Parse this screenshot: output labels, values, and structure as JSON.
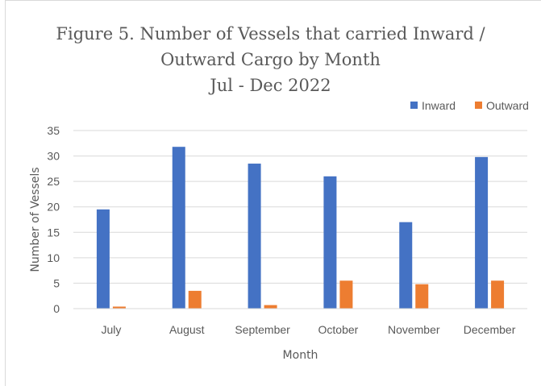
{
  "chart_data": {
    "type": "bar",
    "title_lines": [
      "Figure 5. Number of Vessels that carried Inward /",
      "Outward Cargo by Month",
      "Jul - Dec 2022"
    ],
    "xlabel": "Month",
    "ylabel": "Number  of Vessels",
    "ylim": [
      0,
      35
    ],
    "yticks": [
      "0",
      "5",
      "10",
      "15",
      "20",
      "25",
      "30",
      "35"
    ],
    "categories": [
      "July",
      "August",
      "September",
      "October",
      "November",
      "December"
    ],
    "series": [
      {
        "name": "Inward",
        "color": "#4472c4",
        "values": [
          19.5,
          31.8,
          28.5,
          26,
          17,
          29.8
        ]
      },
      {
        "name": "Outward",
        "color": "#ed7d31",
        "values": [
          0.4,
          3.5,
          0.7,
          5.5,
          4.8,
          5.5
        ]
      }
    ],
    "grid": true,
    "legend_position": "top-right"
  }
}
